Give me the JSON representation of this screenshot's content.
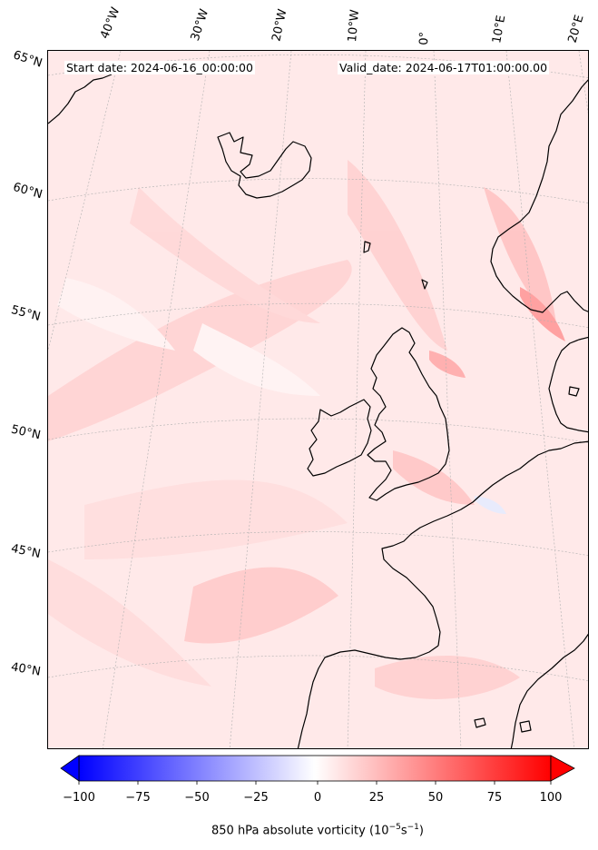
{
  "header": {
    "start_date": "Start date: 2024-06-16_00:00:00",
    "valid_date": "Valid_date: 2024-06-17T01:00:00.00"
  },
  "longitude_labels": [
    "40°W",
    "30°W",
    "20°W",
    "10°W",
    "0°",
    "10°E",
    "20°E"
  ],
  "latitude_labels": [
    "65°N",
    "60°N",
    "55°N",
    "50°N",
    "45°N",
    "40°N"
  ],
  "colorbar": {
    "ticks": [
      "−100",
      "−75",
      "−50",
      "−25",
      "0",
      "25",
      "50",
      "75",
      "100"
    ],
    "tick_values": [
      -100,
      -75,
      -50,
      -25,
      0,
      25,
      50,
      75,
      100
    ],
    "title_prefix": "850 hPa absolute vorticity (10",
    "title_exp1": "−5",
    "title_mid": "s",
    "title_exp2": "−1",
    "title_suffix": ")",
    "colormap": "bwr",
    "min_color": "#0000ff",
    "mid_color": "#ffffff",
    "max_color": "#ff0000"
  },
  "colors": {
    "map_background": "#ffe9e9",
    "coastline": "#000000",
    "gridline": "#b0b0b0"
  }
}
